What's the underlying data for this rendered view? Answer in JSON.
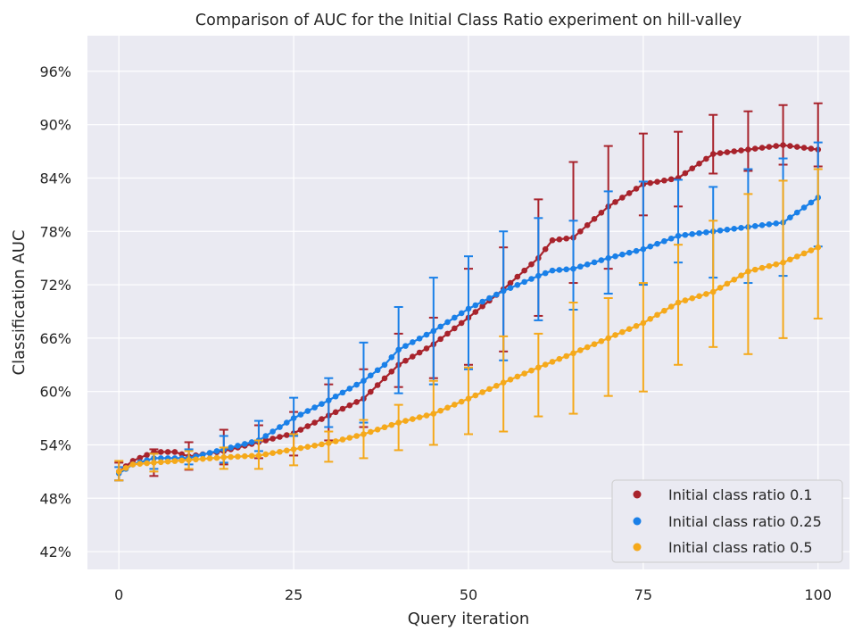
{
  "chart_data": {
    "type": "line",
    "title": "Comparison of AUC for the Initial Class Ratio experiment on hill-valley",
    "xlabel": "Query iteration",
    "ylabel": "Classification AUC",
    "xlim": [
      -4.5,
      104.5
    ],
    "ylim": [
      0.4,
      1.0
    ],
    "xticks": [
      0,
      25,
      50,
      75,
      100
    ],
    "xtick_labels": [
      "0",
      "25",
      "50",
      "75",
      "100"
    ],
    "yticks": [
      0.42,
      0.48,
      0.54,
      0.6,
      0.66,
      0.72,
      0.78,
      0.84,
      0.9,
      0.96
    ],
    "ytick_labels": [
      "42%",
      "48%",
      "54%",
      "60%",
      "66%",
      "72%",
      "78%",
      "84%",
      "90%",
      "96%"
    ],
    "grid": true,
    "background": "#eaeaf2",
    "legend_position": "bottom-right",
    "series": [
      {
        "name": "Initial class ratio 0.1",
        "color": "#a8232c",
        "x": [
          0,
          2,
          5,
          8,
          10,
          15,
          20,
          25,
          30,
          35,
          40,
          45,
          50,
          55,
          60,
          62,
          65,
          70,
          75,
          80,
          85,
          90,
          95,
          100
        ],
        "values": [
          0.51,
          0.522,
          0.532,
          0.532,
          0.527,
          0.533,
          0.543,
          0.553,
          0.573,
          0.592,
          0.63,
          0.653,
          0.683,
          0.715,
          0.75,
          0.77,
          0.773,
          0.808,
          0.833,
          0.84,
          0.867,
          0.872,
          0.877,
          0.872
        ],
        "error_x": [
          0,
          5,
          10,
          15,
          20,
          25,
          30,
          35,
          40,
          45,
          50,
          55,
          60,
          65,
          70,
          75,
          80,
          85,
          90,
          95,
          100
        ],
        "error_low": [
          0.5,
          0.505,
          0.512,
          0.518,
          0.525,
          0.528,
          0.545,
          0.56,
          0.605,
          0.615,
          0.63,
          0.645,
          0.685,
          0.722,
          0.738,
          0.798,
          0.808,
          0.845,
          0.848,
          0.855,
          0.853
        ],
        "error_high": [
          0.52,
          0.535,
          0.543,
          0.557,
          0.562,
          0.577,
          0.608,
          0.625,
          0.665,
          0.683,
          0.738,
          0.762,
          0.816,
          0.858,
          0.876,
          0.89,
          0.892,
          0.911,
          0.915,
          0.922,
          0.924
        ]
      },
      {
        "name": "Initial class ratio 0.25",
        "color": "#1a80e8",
        "x": [
          0,
          2,
          5,
          10,
          15,
          20,
          25,
          30,
          35,
          38,
          40,
          45,
          50,
          55,
          60,
          62,
          65,
          70,
          75,
          80,
          85,
          90,
          95,
          100
        ],
        "values": [
          0.508,
          0.518,
          0.525,
          0.525,
          0.535,
          0.545,
          0.57,
          0.59,
          0.612,
          0.63,
          0.647,
          0.668,
          0.693,
          0.713,
          0.73,
          0.736,
          0.738,
          0.75,
          0.76,
          0.775,
          0.78,
          0.785,
          0.79,
          0.818
        ],
        "error_x": [
          0,
          5,
          10,
          15,
          20,
          25,
          30,
          35,
          40,
          45,
          50,
          55,
          60,
          65,
          70,
          75,
          80,
          85,
          90,
          95,
          100
        ],
        "error_low": [
          0.5,
          0.513,
          0.518,
          0.52,
          0.533,
          0.55,
          0.56,
          0.565,
          0.598,
          0.608,
          0.625,
          0.635,
          0.68,
          0.692,
          0.71,
          0.72,
          0.745,
          0.728,
          0.722,
          0.73,
          0.763
        ],
        "error_high": [
          0.515,
          0.53,
          0.535,
          0.55,
          0.567,
          0.593,
          0.615,
          0.655,
          0.695,
          0.728,
          0.752,
          0.78,
          0.795,
          0.792,
          0.825,
          0.836,
          0.838,
          0.83,
          0.85,
          0.862,
          0.88
        ]
      },
      {
        "name": "Initial class ratio 0.5",
        "color": "#f5a91b",
        "x": [
          0,
          2,
          5,
          10,
          15,
          20,
          25,
          30,
          35,
          40,
          45,
          50,
          55,
          60,
          65,
          70,
          75,
          80,
          85,
          90,
          95,
          100
        ],
        "values": [
          0.51,
          0.518,
          0.52,
          0.523,
          0.526,
          0.528,
          0.535,
          0.542,
          0.552,
          0.565,
          0.575,
          0.592,
          0.61,
          0.627,
          0.643,
          0.66,
          0.677,
          0.7,
          0.712,
          0.735,
          0.745,
          0.762
        ],
        "error_x": [
          0,
          5,
          10,
          15,
          20,
          25,
          30,
          35,
          40,
          45,
          50,
          55,
          60,
          65,
          70,
          75,
          80,
          85,
          90,
          95,
          100
        ],
        "error_low": [
          0.5,
          0.51,
          0.513,
          0.513,
          0.513,
          0.517,
          0.521,
          0.525,
          0.534,
          0.54,
          0.552,
          0.555,
          0.572,
          0.575,
          0.595,
          0.6,
          0.63,
          0.65,
          0.642,
          0.66,
          0.682
        ],
        "error_high": [
          0.522,
          0.53,
          0.533,
          0.537,
          0.545,
          0.552,
          0.555,
          0.568,
          0.585,
          0.612,
          0.627,
          0.662,
          0.665,
          0.7,
          0.705,
          0.722,
          0.765,
          0.792,
          0.822,
          0.837,
          0.85
        ]
      }
    ]
  }
}
